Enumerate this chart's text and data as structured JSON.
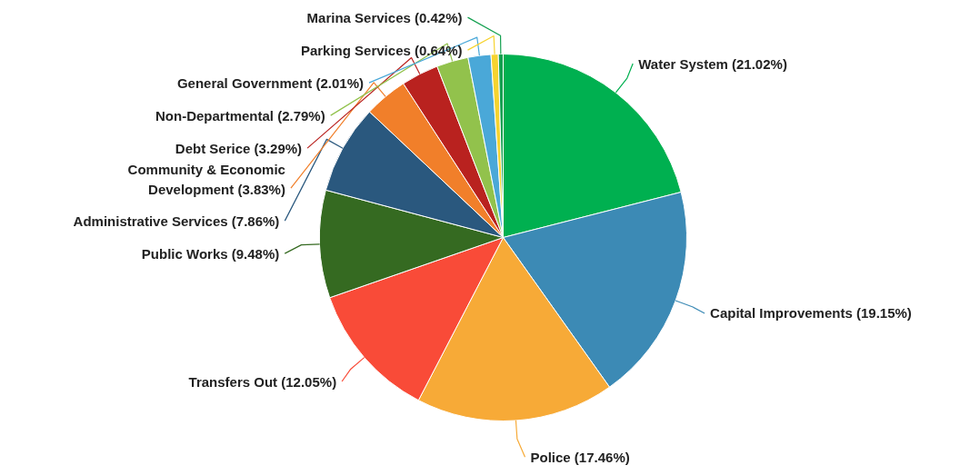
{
  "chart_data": {
    "type": "pie",
    "categories": [
      "Water System",
      "Capital Improvements",
      "Police",
      "Transfers Out",
      "Public Works",
      "Administrative Services",
      "Community & Economic Development",
      "Debt Serice",
      "Non-Departmental",
      "General Government",
      "Parking Services",
      "Marina Services"
    ],
    "values": [
      21.02,
      19.15,
      17.46,
      12.05,
      9.48,
      7.86,
      3.83,
      3.29,
      2.79,
      2.01,
      0.64,
      0.42
    ],
    "value_labels": [
      "(21.02%)",
      "(19.15%)",
      "(17.46%)",
      "(12.05%)",
      "(9.48%)",
      "(7.86%)",
      "(3.83%)",
      "(3.29%)",
      "(2.79%)",
      "(2.01%)",
      "(0.64%)",
      "(0.42%)"
    ],
    "colors": [
      "#00b050",
      "#3c8ab5",
      "#f7aa37",
      "#f94b38",
      "#356a21",
      "#2a587e",
      "#f17f2a",
      "#b9221f",
      "#92c24c",
      "#4aa8d8",
      "#f6d32f",
      "#14a050"
    ]
  }
}
